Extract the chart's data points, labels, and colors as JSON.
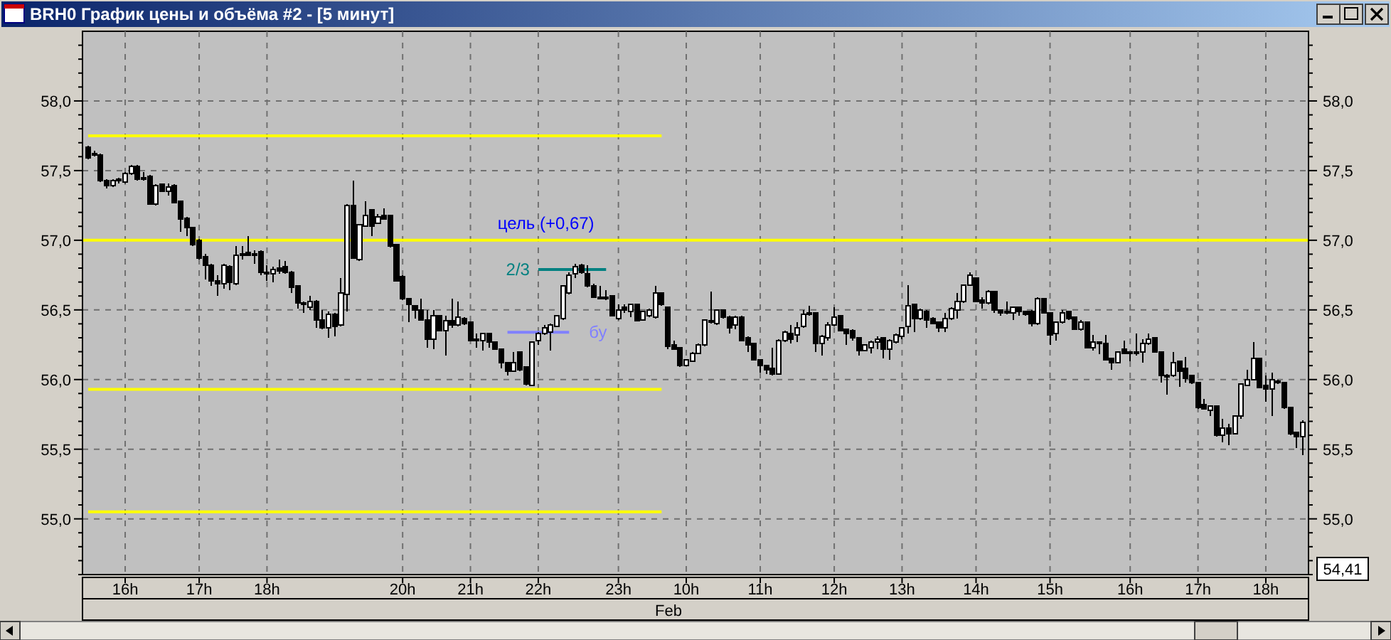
{
  "chart_data": {
    "type": "candlestick",
    "title": "BRH0 График цены и объёма #2 - [5 минут]",
    "categories": [
      null,
      null,
      null,
      null,
      null,
      null,
      "16h",
      null,
      null,
      null,
      null,
      null,
      null,
      null,
      null,
      null,
      null,
      null,
      "17h",
      null,
      null,
      null,
      null,
      null,
      null,
      null,
      null,
      null,
      null,
      "18h",
      null,
      null,
      null,
      null,
      null,
      null,
      null,
      null,
      null,
      null,
      null,
      null,
      null,
      null,
      null,
      null,
      null,
      null,
      null,
      null,
      null,
      "20h",
      null,
      null,
      null,
      null,
      null,
      null,
      null,
      null,
      null,
      null,
      "21h",
      null,
      null,
      null,
      null,
      null,
      null,
      null,
      null,
      null,
      null,
      "22h",
      null,
      null,
      null,
      null,
      null,
      null,
      null,
      null,
      null,
      null,
      null,
      null,
      "23h",
      null,
      null,
      null,
      null,
      null,
      null,
      null,
      null,
      null,
      null,
      "10h",
      null,
      null,
      null,
      null,
      null,
      null,
      null,
      null,
      null,
      null,
      null,
      "11h",
      null,
      null,
      null,
      null,
      null,
      null,
      null,
      null,
      null,
      null,
      null,
      "12h",
      null,
      null,
      null,
      null,
      null,
      null,
      null,
      null,
      null,
      null,
      "13h",
      null,
      null,
      null,
      null,
      null,
      null,
      null,
      null,
      null,
      null,
      null,
      "14h",
      null,
      null,
      null,
      null,
      null,
      null,
      null,
      null,
      null,
      null,
      null,
      "15h",
      null,
      null,
      null,
      null,
      null,
      null,
      null,
      null,
      null,
      null,
      null,
      null,
      "16h",
      null,
      null,
      null,
      null,
      null,
      null,
      null,
      null,
      null,
      null,
      "17h",
      null,
      null,
      null,
      null,
      null,
      null,
      null,
      null,
      null,
      null,
      "18h",
      null,
      null,
      null,
      null,
      null,
      null
    ],
    "ohlc": [
      [
        57.67,
        57.68,
        57.58,
        57.59
      ],
      [
        57.62,
        57.64,
        57.6,
        57.61
      ],
      [
        57.61,
        57.62,
        57.42,
        57.43
      ],
      [
        57.43,
        57.44,
        57.37,
        57.39
      ],
      [
        57.39,
        57.44,
        57.38,
        57.43
      ],
      [
        57.43,
        57.45,
        57.41,
        57.44
      ],
      [
        57.42,
        57.49,
        57.41,
        57.48
      ],
      [
        57.48,
        57.54,
        57.47,
        57.53
      ],
      [
        57.53,
        57.54,
        57.43,
        57.44
      ],
      [
        57.45,
        57.49,
        57.43,
        57.44
      ],
      [
        57.46,
        57.47,
        57.26,
        57.26
      ],
      [
        57.26,
        57.4,
        57.25,
        57.39
      ],
      [
        57.4,
        57.41,
        57.35,
        57.35
      ],
      [
        57.35,
        57.41,
        57.32,
        57.38
      ],
      [
        57.39,
        57.4,
        57.27,
        57.27
      ],
      [
        57.28,
        57.28,
        57.06,
        57.15
      ],
      [
        57.16,
        57.17,
        57.03,
        57.09
      ],
      [
        57.09,
        57.09,
        56.96,
        56.97
      ],
      [
        57.0,
        57.01,
        56.86,
        56.87
      ],
      [
        56.88,
        56.9,
        56.72,
        56.82
      ],
      [
        56.82,
        56.83,
        56.67,
        56.71
      ],
      [
        56.71,
        56.75,
        56.6,
        56.69
      ],
      [
        56.69,
        56.83,
        56.65,
        56.82
      ],
      [
        56.81,
        56.82,
        56.64,
        56.7
      ],
      [
        56.69,
        56.96,
        56.68,
        56.89
      ],
      [
        56.89,
        56.96,
        56.86,
        56.9
      ],
      [
        56.91,
        57.03,
        56.89,
        56.89
      ],
      [
        56.9,
        56.93,
        56.83,
        56.89
      ],
      [
        56.92,
        56.93,
        56.75,
        56.77
      ],
      [
        56.77,
        56.82,
        56.71,
        56.76
      ],
      [
        56.76,
        56.81,
        56.7,
        56.79
      ],
      [
        56.8,
        56.86,
        56.76,
        56.78
      ],
      [
        56.81,
        56.85,
        56.76,
        56.77
      ],
      [
        56.77,
        56.78,
        56.62,
        56.66
      ],
      [
        56.67,
        56.67,
        56.51,
        56.55
      ],
      [
        56.55,
        56.56,
        56.48,
        56.54
      ],
      [
        56.52,
        56.6,
        56.5,
        56.56
      ],
      [
        56.56,
        56.57,
        56.37,
        56.43
      ],
      [
        56.43,
        56.5,
        56.36,
        56.37
      ],
      [
        56.37,
        56.49,
        56.3,
        56.47
      ],
      [
        56.47,
        56.48,
        56.31,
        56.38
      ],
      [
        56.39,
        56.73,
        56.38,
        56.62
      ],
      [
        56.61,
        57.26,
        56.49,
        57.25
      ],
      [
        57.25,
        57.43,
        56.87,
        56.87
      ],
      [
        56.86,
        57.11,
        56.85,
        57.11
      ],
      [
        57.1,
        57.28,
        57.1,
        57.18
      ],
      [
        57.22,
        57.22,
        57.03,
        57.1
      ],
      [
        57.12,
        57.19,
        57.12,
        57.17
      ],
      [
        57.18,
        57.23,
        57.15,
        57.15
      ],
      [
        57.18,
        57.18,
        56.95,
        56.96
      ],
      [
        56.97,
        56.97,
        56.71,
        56.71
      ],
      [
        56.74,
        56.75,
        56.57,
        56.58
      ],
      [
        56.58,
        56.58,
        56.41,
        56.54
      ],
      [
        56.53,
        56.53,
        56.44,
        56.5
      ],
      [
        56.5,
        56.58,
        56.43,
        56.43
      ],
      [
        56.43,
        56.5,
        56.23,
        56.29
      ],
      [
        56.29,
        56.5,
        56.22,
        56.46
      ],
      [
        56.46,
        56.46,
        56.35,
        56.35
      ],
      [
        56.35,
        56.46,
        56.17,
        56.42
      ],
      [
        56.42,
        56.58,
        56.37,
        56.39
      ],
      [
        56.39,
        56.56,
        56.38,
        56.45
      ],
      [
        56.44,
        56.45,
        56.39,
        56.4
      ],
      [
        56.41,
        56.41,
        56.28,
        56.28
      ],
      [
        56.29,
        56.33,
        56.23,
        56.29
      ],
      [
        56.28,
        56.33,
        56.21,
        56.33
      ],
      [
        56.33,
        56.33,
        56.23,
        56.27
      ],
      [
        56.27,
        56.27,
        56.22,
        56.22
      ],
      [
        56.22,
        56.22,
        56.08,
        56.12
      ],
      [
        56.12,
        56.12,
        56.03,
        56.06
      ],
      [
        56.06,
        56.2,
        56.06,
        56.12
      ],
      [
        56.2,
        56.2,
        56.06,
        56.07
      ],
      [
        56.09,
        56.09,
        55.96,
        55.97
      ],
      [
        55.96,
        56.27,
        55.96,
        56.27
      ],
      [
        56.28,
        56.34,
        56.25,
        56.33
      ],
      [
        56.33,
        56.39,
        56.32,
        56.37
      ],
      [
        56.34,
        56.4,
        56.21,
        56.39
      ],
      [
        56.38,
        56.46,
        56.38,
        56.46
      ],
      [
        56.44,
        56.68,
        56.43,
        56.67
      ],
      [
        56.62,
        56.77,
        56.61,
        56.75
      ],
      [
        56.76,
        56.83,
        56.73,
        56.81
      ],
      [
        56.82,
        56.83,
        56.76,
        56.77
      ],
      [
        56.76,
        56.82,
        56.66,
        56.67
      ],
      [
        56.67,
        56.69,
        56.59,
        56.59
      ],
      [
        56.59,
        56.67,
        56.58,
        56.59
      ],
      [
        56.59,
        56.64,
        56.57,
        56.59
      ],
      [
        56.6,
        56.6,
        56.46,
        56.46
      ],
      [
        56.44,
        56.54,
        56.43,
        56.5
      ],
      [
        56.52,
        56.54,
        56.48,
        56.5
      ],
      [
        56.49,
        56.54,
        56.45,
        56.54
      ],
      [
        56.54,
        56.54,
        56.42,
        56.42
      ],
      [
        56.43,
        56.49,
        56.43,
        56.49
      ],
      [
        56.46,
        56.51,
        56.45,
        56.5
      ],
      [
        56.45,
        56.67,
        56.44,
        56.62
      ],
      [
        56.62,
        56.62,
        56.53,
        56.54
      ],
      [
        56.52,
        56.52,
        56.22,
        56.24
      ],
      [
        56.25,
        56.28,
        56.22,
        56.22
      ],
      [
        56.23,
        56.23,
        56.09,
        56.1
      ],
      [
        56.1,
        56.14,
        56.1,
        56.14
      ],
      [
        56.13,
        56.2,
        56.13,
        56.19
      ],
      [
        56.19,
        56.26,
        56.19,
        56.25
      ],
      [
        56.25,
        56.43,
        56.24,
        56.43
      ],
      [
        56.41,
        56.63,
        56.4,
        56.42
      ],
      [
        56.4,
        56.5,
        56.39,
        56.5
      ],
      [
        56.5,
        56.5,
        56.44,
        56.45
      ],
      [
        56.45,
        56.46,
        56.33,
        56.37
      ],
      [
        56.39,
        56.46,
        56.36,
        56.45
      ],
      [
        56.45,
        56.46,
        56.28,
        56.28
      ],
      [
        56.3,
        56.31,
        56.2,
        56.25
      ],
      [
        56.26,
        56.26,
        56.14,
        56.14
      ],
      [
        56.14,
        56.14,
        56.05,
        56.1
      ],
      [
        56.1,
        56.1,
        56.04,
        56.07
      ],
      [
        56.08,
        56.23,
        56.03,
        56.04
      ],
      [
        56.04,
        56.29,
        56.04,
        56.28
      ],
      [
        56.28,
        56.35,
        56.27,
        56.34
      ],
      [
        56.33,
        56.39,
        56.26,
        56.29
      ],
      [
        56.32,
        56.41,
        56.27,
        56.37
      ],
      [
        56.38,
        56.5,
        56.37,
        56.47
      ],
      [
        56.48,
        56.53,
        56.46,
        56.48
      ],
      [
        56.48,
        56.48,
        56.2,
        56.26
      ],
      [
        56.26,
        56.32,
        56.17,
        56.31
      ],
      [
        56.3,
        56.41,
        56.28,
        56.39
      ],
      [
        56.39,
        56.52,
        56.38,
        56.45
      ],
      [
        56.46,
        56.46,
        56.35,
        56.35
      ],
      [
        56.36,
        56.36,
        56.25,
        56.33
      ],
      [
        56.35,
        56.36,
        56.28,
        56.3
      ],
      [
        56.3,
        56.3,
        56.17,
        56.21
      ],
      [
        56.21,
        56.25,
        56.21,
        56.25
      ],
      [
        56.23,
        56.28,
        56.19,
        56.27
      ],
      [
        56.27,
        56.31,
        56.22,
        56.29
      ],
      [
        56.3,
        56.3,
        56.15,
        56.22
      ],
      [
        56.22,
        56.29,
        56.14,
        56.28
      ],
      [
        56.27,
        56.33,
        56.26,
        56.32
      ],
      [
        56.31,
        56.37,
        56.29,
        56.37
      ],
      [
        56.38,
        56.68,
        56.33,
        56.53
      ],
      [
        56.54,
        56.54,
        56.34,
        56.44
      ],
      [
        56.44,
        56.51,
        56.43,
        56.5
      ],
      [
        56.49,
        56.5,
        56.37,
        56.43
      ],
      [
        56.44,
        56.45,
        56.4,
        56.4
      ],
      [
        56.41,
        56.41,
        56.34,
        56.37
      ],
      [
        56.37,
        56.48,
        56.34,
        56.44
      ],
      [
        56.44,
        56.52,
        56.43,
        56.51
      ],
      [
        56.5,
        56.62,
        56.44,
        56.56
      ],
      [
        56.56,
        56.68,
        56.55,
        56.68
      ],
      [
        56.68,
        56.77,
        56.67,
        56.75
      ],
      [
        56.73,
        56.73,
        56.56,
        56.56
      ],
      [
        56.57,
        56.59,
        56.51,
        56.55
      ],
      [
        56.55,
        56.64,
        56.54,
        56.63
      ],
      [
        56.63,
        56.63,
        56.48,
        56.5
      ],
      [
        56.5,
        56.5,
        56.46,
        56.48
      ],
      [
        56.49,
        56.56,
        56.47,
        56.49
      ],
      [
        56.48,
        56.52,
        56.43,
        56.52
      ],
      [
        56.52,
        56.52,
        56.46,
        56.49
      ],
      [
        56.49,
        56.49,
        56.46,
        56.47
      ],
      [
        56.49,
        56.5,
        56.38,
        56.4
      ],
      [
        56.4,
        56.59,
        56.39,
        56.58
      ],
      [
        56.58,
        56.58,
        56.48,
        56.48
      ],
      [
        56.48,
        56.48,
        56.25,
        56.32
      ],
      [
        56.33,
        56.41,
        56.28,
        56.41
      ],
      [
        56.41,
        56.5,
        56.4,
        56.48
      ],
      [
        56.49,
        56.49,
        56.43,
        56.44
      ],
      [
        56.45,
        56.45,
        56.36,
        56.36
      ],
      [
        56.36,
        56.43,
        56.35,
        56.41
      ],
      [
        56.41,
        56.41,
        56.23,
        56.23
      ],
      [
        56.23,
        56.32,
        56.21,
        56.27
      ],
      [
        56.27,
        56.27,
        56.18,
        56.26
      ],
      [
        56.26,
        56.32,
        56.14,
        56.14
      ],
      [
        56.15,
        56.15,
        56.07,
        56.12
      ],
      [
        56.12,
        56.2,
        56.12,
        56.2
      ],
      [
        56.22,
        56.28,
        56.19,
        56.19
      ],
      [
        56.2,
        56.2,
        56.13,
        56.2
      ],
      [
        56.2,
        56.33,
        56.17,
        56.2
      ],
      [
        56.2,
        56.29,
        56.12,
        56.26
      ],
      [
        56.26,
        56.33,
        56.25,
        56.29
      ],
      [
        56.3,
        56.3,
        56.2,
        56.2
      ],
      [
        56.2,
        56.2,
        55.98,
        56.03
      ],
      [
        56.03,
        56.04,
        55.89,
        56.03
      ],
      [
        56.03,
        56.2,
        56.02,
        56.12
      ],
      [
        56.13,
        56.13,
        55.95,
        56.06
      ],
      [
        56.08,
        56.16,
        55.98,
        56.01
      ],
      [
        56.03,
        56.03,
        55.97,
        55.98
      ],
      [
        55.98,
        55.98,
        55.79,
        55.8
      ],
      [
        55.82,
        55.86,
        55.79,
        55.79
      ],
      [
        55.78,
        55.81,
        55.74,
        55.81
      ],
      [
        55.81,
        55.81,
        55.59,
        55.6
      ],
      [
        55.6,
        55.72,
        55.55,
        55.65
      ],
      [
        55.65,
        55.68,
        55.53,
        55.61
      ],
      [
        55.61,
        55.74,
        55.61,
        55.74
      ],
      [
        55.74,
        55.97,
        55.72,
        55.97
      ],
      [
        55.96,
        56.07,
        55.96,
        56.0
      ],
      [
        56.0,
        56.27,
        56.0,
        56.15
      ],
      [
        56.15,
        56.15,
        55.94,
        55.94
      ],
      [
        55.96,
        56.03,
        55.84,
        55.93
      ],
      [
        55.93,
        56.05,
        55.74,
        56.0
      ],
      [
        55.99,
        56.0,
        55.97,
        55.98
      ],
      [
        55.98,
        55.98,
        55.79,
        55.8
      ],
      [
        55.8,
        55.8,
        55.6,
        55.61
      ],
      [
        55.62,
        55.62,
        55.51,
        55.59
      ],
      [
        55.59,
        55.71,
        55.46,
        55.69
      ]
    ],
    "series": [
      {
        "type": "line",
        "color": "#ffff00",
        "values": [
          57.75,
          57.75,
          57.75,
          57.75,
          57.75,
          57.75,
          57.75,
          57.75,
          57.75,
          57.75,
          57.75,
          57.75,
          57.75,
          57.75,
          57.75,
          57.75,
          57.75,
          57.75,
          57.75,
          57.75,
          57.75,
          57.75,
          57.75,
          57.75,
          57.75,
          57.75,
          57.75,
          57.75,
          57.75,
          57.75,
          57.75,
          57.75,
          57.75,
          57.75,
          57.75,
          57.75,
          57.75,
          57.75,
          57.75,
          57.75,
          57.75,
          57.75,
          57.75,
          57.75,
          57.75,
          57.75,
          57.75,
          57.75,
          57.75,
          57.75,
          57.75,
          57.75,
          57.75,
          57.75,
          57.75,
          57.75,
          57.75,
          57.75,
          57.75,
          57.75,
          57.75,
          57.75,
          57.75,
          57.75,
          57.75,
          57.75,
          57.75,
          57.75,
          57.75,
          57.75,
          57.75,
          57.75,
          57.75,
          57.75,
          57.75,
          57.75,
          57.75,
          57.75,
          57.75,
          57.75,
          57.75,
          57.75,
          57.75,
          57.75,
          57.75,
          57.75,
          57.75,
          57.75,
          57.75,
          57.75,
          57.75,
          57.75,
          57.75,
          57.75,
          null,
          null,
          null,
          null,
          null,
          null,
          null,
          null,
          null,
          null,
          null,
          null,
          null,
          null,
          null,
          null,
          null,
          null,
          null,
          null,
          null,
          null,
          null,
          null,
          null,
          null,
          null,
          null,
          null,
          null,
          null,
          null,
          null,
          null,
          null,
          null,
          null,
          null,
          null,
          null,
          null,
          null,
          null,
          null,
          null,
          null,
          null,
          null,
          null,
          null,
          null,
          null,
          null,
          null,
          null,
          null,
          null,
          null,
          null,
          null,
          null,
          null,
          null,
          null,
          null,
          null,
          null,
          null,
          null,
          null,
          null,
          null,
          null,
          null,
          null,
          null,
          null,
          null,
          null,
          null,
          null,
          null,
          null,
          null,
          null,
          null,
          null,
          null,
          null,
          null,
          null,
          null,
          null,
          null,
          null,
          null,
          null,
          null,
          null,
          null,
          null,
          null,
          null,
          null
        ]
      },
      {
        "type": "line",
        "color": "#ffff00",
        "values": [
          55.93,
          55.93,
          55.93,
          55.93,
          55.93,
          55.93,
          55.93,
          55.93,
          55.93,
          55.93,
          55.93,
          55.93,
          55.93,
          55.93,
          55.93,
          55.93,
          55.93,
          55.93,
          55.93,
          55.93,
          55.93,
          55.93,
          55.93,
          55.93,
          55.93,
          55.93,
          55.93,
          55.93,
          55.93,
          55.93,
          55.93,
          55.93,
          55.93,
          55.93,
          55.93,
          55.93,
          55.93,
          55.93,
          55.93,
          55.93,
          55.93,
          55.93,
          55.93,
          55.93,
          55.93,
          55.93,
          55.93,
          55.93,
          55.93,
          55.93,
          55.93,
          55.93,
          55.93,
          55.93,
          55.93,
          55.93,
          55.93,
          55.93,
          55.93,
          55.93,
          55.93,
          55.93,
          55.93,
          55.93,
          55.93,
          55.93,
          55.93,
          55.93,
          55.93,
          55.93,
          55.93,
          55.93,
          55.93,
          55.93,
          55.93,
          55.93,
          55.93,
          55.93,
          55.93,
          55.93,
          55.93,
          55.93,
          55.93,
          55.93,
          55.93,
          55.93,
          55.93,
          55.93,
          55.93,
          55.93,
          55.93,
          55.93,
          55.93,
          55.93,
          null,
          null,
          null,
          null,
          null,
          null,
          null,
          null,
          null,
          null,
          null,
          null,
          null,
          null,
          null,
          null,
          null,
          null,
          null,
          null,
          null,
          null,
          null,
          null,
          null,
          null,
          null,
          null,
          null,
          null,
          null,
          null,
          null,
          null,
          null,
          null,
          null,
          null,
          null,
          null,
          null,
          null,
          null,
          null,
          null,
          null,
          null,
          null,
          null,
          null,
          null,
          null,
          null,
          null,
          null,
          null,
          null,
          null,
          null,
          null,
          null,
          null,
          null,
          null,
          null,
          null,
          null,
          null,
          null,
          null,
          null,
          null,
          null,
          null,
          null,
          null,
          null,
          null,
          null,
          null,
          null,
          null,
          null,
          null,
          null,
          null,
          null,
          null,
          null,
          null,
          null,
          null,
          null,
          null,
          null,
          null,
          null,
          null,
          null,
          null,
          null,
          null,
          null,
          null
        ]
      },
      {
        "type": "line",
        "color": "#ffff00",
        "values": [
          55.05,
          55.05,
          55.05,
          55.05,
          55.05,
          55.05,
          55.05,
          55.05,
          55.05,
          55.05,
          55.05,
          55.05,
          55.05,
          55.05,
          55.05,
          55.05,
          55.05,
          55.05,
          55.05,
          55.05,
          55.05,
          55.05,
          55.05,
          55.05,
          55.05,
          55.05,
          55.05,
          55.05,
          55.05,
          55.05,
          55.05,
          55.05,
          55.05,
          55.05,
          55.05,
          55.05,
          55.05,
          55.05,
          55.05,
          55.05,
          55.05,
          55.05,
          55.05,
          55.05,
          55.05,
          55.05,
          55.05,
          55.05,
          55.05,
          55.05,
          55.05,
          55.05,
          55.05,
          55.05,
          55.05,
          55.05,
          55.05,
          55.05,
          55.05,
          55.05,
          55.05,
          55.05,
          55.05,
          55.05,
          55.05,
          55.05,
          55.05,
          55.05,
          55.05,
          55.05,
          55.05,
          55.05,
          55.05,
          55.05,
          55.05,
          55.05,
          55.05,
          55.05,
          55.05,
          55.05,
          55.05,
          55.05,
          55.05,
          55.05,
          55.05,
          55.05,
          55.05,
          55.05,
          55.05,
          55.05,
          55.05,
          55.05,
          55.05,
          55.05,
          null,
          null,
          null,
          null,
          null,
          null,
          null,
          null,
          null,
          null,
          null,
          null,
          null,
          null,
          null,
          null,
          null,
          null,
          null,
          null,
          null,
          null,
          null,
          null,
          null,
          null,
          null,
          null,
          null,
          null,
          null,
          null,
          null,
          null,
          null,
          null,
          null,
          null,
          null,
          null,
          null,
          null,
          null,
          null,
          null,
          null,
          null,
          null,
          null,
          null,
          null,
          null,
          null,
          null,
          null,
          null,
          null,
          null,
          null,
          null,
          null,
          null,
          null,
          null,
          null,
          null,
          null,
          null,
          null,
          null,
          null,
          null,
          null,
          null,
          null,
          null,
          null,
          null,
          null,
          null,
          null,
          null,
          null,
          null,
          null,
          null,
          null,
          null,
          null,
          null,
          null,
          null,
          null,
          null,
          null,
          null,
          null,
          null,
          null,
          null,
          null,
          null,
          null,
          null
        ]
      },
      {
        "type": "line",
        "name": "2/3",
        "color": "#008080",
        "values": [
          null,
          null,
          null,
          null,
          null,
          null,
          null,
          null,
          null,
          null,
          null,
          null,
          null,
          null,
          null,
          null,
          null,
          null,
          null,
          null,
          null,
          null,
          null,
          null,
          null,
          null,
          null,
          null,
          null,
          null,
          null,
          null,
          null,
          null,
          null,
          null,
          null,
          null,
          null,
          null,
          null,
          null,
          null,
          null,
          null,
          null,
          null,
          null,
          null,
          null,
          null,
          null,
          null,
          null,
          null,
          null,
          null,
          null,
          null,
          null,
          null,
          null,
          null,
          null,
          null,
          null,
          null,
          null,
          null,
          null,
          null,
          null,
          null,
          56.79,
          56.79,
          56.79,
          56.79,
          56.79,
          56.79,
          56.79,
          56.79,
          56.79,
          56.79,
          56.79,
          56.79,
          null,
          null,
          null,
          null,
          null,
          null,
          null,
          null,
          null,
          null,
          null,
          null,
          null,
          null,
          null,
          null,
          null,
          null,
          null,
          null,
          null,
          null,
          null,
          null,
          null,
          null,
          null,
          null,
          null,
          null,
          null,
          null,
          null,
          null,
          null,
          null,
          null,
          null,
          null,
          null,
          null,
          null,
          null,
          null,
          null,
          null,
          null,
          null,
          null,
          null,
          null,
          null,
          null,
          null,
          null,
          null,
          null,
          null,
          null,
          null,
          null,
          null,
          null,
          null,
          null,
          null,
          null,
          null,
          null,
          null,
          null,
          null,
          null,
          null,
          null,
          null,
          null,
          null,
          null,
          null,
          null,
          null,
          null,
          null,
          null,
          null,
          null,
          null,
          null,
          null,
          null,
          null,
          null,
          null,
          null,
          null,
          null,
          null,
          null,
          null,
          null,
          null,
          null,
          null,
          null,
          null,
          null,
          null,
          null,
          null,
          null,
          null,
          null
        ]
      },
      {
        "type": "line",
        "name": "бу",
        "color": "#8080ff",
        "values": [
          null,
          null,
          null,
          null,
          null,
          null,
          null,
          null,
          null,
          null,
          null,
          null,
          null,
          null,
          null,
          null,
          null,
          null,
          null,
          null,
          null,
          null,
          null,
          null,
          null,
          null,
          null,
          null,
          null,
          null,
          null,
          null,
          null,
          null,
          null,
          null,
          null,
          null,
          null,
          null,
          null,
          null,
          null,
          null,
          null,
          null,
          null,
          null,
          null,
          null,
          null,
          null,
          null,
          null,
          null,
          null,
          null,
          null,
          null,
          null,
          null,
          null,
          null,
          null,
          null,
          null,
          null,
          null,
          56.34,
          56.34,
          56.34,
          56.34,
          56.34,
          56.34,
          56.34,
          56.34,
          56.34,
          56.34,
          56.34,
          null,
          null,
          null,
          null,
          null,
          null,
          null,
          null,
          null,
          null,
          null,
          null,
          null,
          null,
          null,
          null,
          null,
          null,
          null,
          null,
          null,
          null,
          null,
          null,
          null,
          null,
          null,
          null,
          null,
          null,
          null,
          null,
          null,
          null,
          null,
          null,
          null,
          null,
          null,
          null,
          null,
          null,
          null,
          null,
          null,
          null,
          null,
          null,
          null,
          null,
          null,
          null,
          null,
          null,
          null,
          null,
          null,
          null,
          null,
          null,
          null,
          null,
          null,
          null,
          null,
          null,
          null,
          null,
          null,
          null,
          null,
          null,
          null,
          null,
          null,
          null,
          null,
          null,
          null,
          null,
          null,
          null,
          null,
          null,
          null,
          null,
          null,
          null,
          null,
          null,
          null,
          null,
          null,
          null,
          null,
          null,
          null,
          null,
          null,
          null,
          null,
          null,
          null,
          null,
          null,
          null,
          null,
          null,
          null,
          null,
          null,
          null,
          null,
          null,
          null,
          null,
          null,
          null,
          null
        ]
      }
    ],
    "ref_lines": [
      {
        "axis": "y",
        "value": 57.0,
        "label": "цель (+0,67)",
        "color": "#ffff00"
      }
    ],
    "annotations": [
      "Feb",
      "54,41"
    ],
    "ylim": [
      54.6,
      58.5
    ],
    "yticks": [
      {
        "value": 54.6,
        "label": null
      },
      {
        "value": 54.7,
        "label": null
      },
      {
        "value": 54.8,
        "label": null
      },
      {
        "value": 54.9,
        "label": null
      },
      {
        "value": 55,
        "label": "55,0"
      },
      {
        "value": 55.1,
        "label": null
      },
      {
        "value": 55.2,
        "label": null
      },
      {
        "value": 55.3,
        "label": null
      },
      {
        "value": 55.4,
        "label": null
      },
      {
        "value": 55.5,
        "label": "55,5"
      },
      {
        "value": 55.6,
        "label": null
      },
      {
        "value": 55.7,
        "label": null
      },
      {
        "value": 55.8,
        "label": null
      },
      {
        "value": 55.9,
        "label": null
      },
      {
        "value": 56,
        "label": "56,0"
      },
      {
        "value": 56.1,
        "label": null
      },
      {
        "value": 56.2,
        "label": null
      },
      {
        "value": 56.3,
        "label": null
      },
      {
        "value": 56.4,
        "label": null
      },
      {
        "value": 56.5,
        "label": "56,5"
      },
      {
        "value": 56.6,
        "label": null
      },
      {
        "value": 56.7,
        "label": null
      },
      {
        "value": 56.8,
        "label": null
      },
      {
        "value": 56.9,
        "label": null
      },
      {
        "value": 57,
        "label": "57,0"
      },
      {
        "value": 57.1,
        "label": null
      },
      {
        "value": 57.2,
        "label": null
      },
      {
        "value": 57.3,
        "label": null
      },
      {
        "value": 57.4,
        "label": null
      },
      {
        "value": 57.5,
        "label": "57,5"
      },
      {
        "value": 57.6,
        "label": null
      },
      {
        "value": 57.7,
        "label": null
      },
      {
        "value": 57.8,
        "label": null
      },
      {
        "value": 57.9,
        "label": null
      },
      {
        "value": 58,
        "label": "58,0"
      },
      {
        "value": 58.1,
        "label": null
      },
      {
        "value": 58.2,
        "label": null
      },
      {
        "value": 58.3,
        "label": null
      },
      {
        "value": 58.4,
        "label": null
      }
    ],
    "y2lim": [
      54.6,
      58.5
    ],
    "y2ticks": [
      {
        "value": 54.6,
        "label": null
      },
      {
        "value": 54.7,
        "label": null
      },
      {
        "value": 54.8,
        "label": null
      },
      {
        "value": 54.9,
        "label": null
      },
      {
        "value": 55,
        "label": "55,0"
      },
      {
        "value": 55.1,
        "label": null
      },
      {
        "value": 55.2,
        "label": null
      },
      {
        "value": 55.3,
        "label": null
      },
      {
        "value": 55.4,
        "label": null
      },
      {
        "value": 55.5,
        "label": "55,5"
      },
      {
        "value": 55.6,
        "label": null
      },
      {
        "value": 55.7,
        "label": null
      },
      {
        "value": 55.8,
        "label": null
      },
      {
        "value": 55.9,
        "label": null
      },
      {
        "value": 56,
        "label": "56,0"
      },
      {
        "value": 56.1,
        "label": null
      },
      {
        "value": 56.2,
        "label": null
      },
      {
        "value": 56.3,
        "label": null
      },
      {
        "value": 56.4,
        "label": null
      },
      {
        "value": 56.5,
        "label": "56,5"
      },
      {
        "value": 56.6,
        "label": null
      },
      {
        "value": 56.7,
        "label": null
      },
      {
        "value": 56.8,
        "label": null
      },
      {
        "value": 56.9,
        "label": null
      },
      {
        "value": 57,
        "label": "57,0"
      },
      {
        "value": 57.1,
        "label": null
      },
      {
        "value": 57.2,
        "label": null
      },
      {
        "value": 57.3,
        "label": null
      },
      {
        "value": 57.4,
        "label": null
      },
      {
        "value": 57.5,
        "label": "57,5"
      },
      {
        "value": 57.6,
        "label": null
      },
      {
        "value": 57.7,
        "label": null
      },
      {
        "value": 57.8,
        "label": null
      },
      {
        "value": 57.9,
        "label": null
      },
      {
        "value": 58,
        "label": "58,0"
      },
      {
        "value": 58.1,
        "label": null
      },
      {
        "value": 58.2,
        "label": null
      },
      {
        "value": 58.3,
        "label": null
      },
      {
        "value": 58.4,
        "label": null
      }
    ],
    "grid": true
  }
}
